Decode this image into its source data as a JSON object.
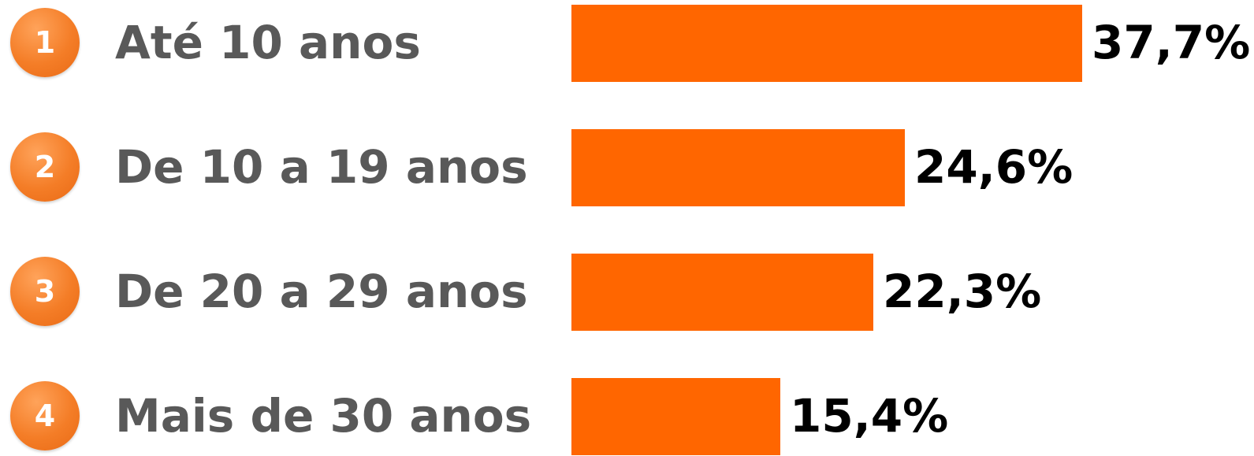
{
  "chart_data": {
    "type": "bar",
    "orientation": "horizontal",
    "categories": [
      "Até 10 anos",
      "De 10 a 19 anos",
      "De 20 a 29 anos",
      "Mais de 30 anos"
    ],
    "ranks": [
      "1",
      "2",
      "3",
      "4"
    ],
    "values": [
      37.7,
      24.6,
      22.3,
      15.4
    ],
    "value_labels": [
      "37,7%",
      "24,6%",
      "22,3%",
      "15,4%"
    ],
    "title": "",
    "xlabel": "",
    "ylabel": "",
    "xlim": [
      0,
      37.7
    ],
    "grid": false,
    "legend": "none",
    "colors": {
      "bar": "#ff6600",
      "badge": "#f47d27",
      "label_text": "#595959",
      "value_text": "#000000"
    }
  }
}
